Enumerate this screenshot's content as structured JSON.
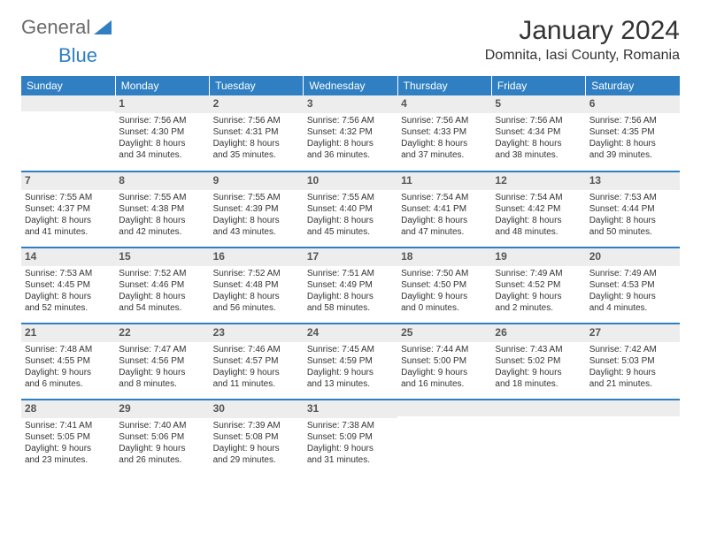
{
  "logo": {
    "text1": "General",
    "text2": "Blue"
  },
  "title": "January 2024",
  "location": "Domnita, Iasi County, Romania",
  "colors": {
    "header_bg": "#2f7fc2",
    "header_text": "#ffffff",
    "daynum_bg": "#ededed",
    "daynum_text": "#555555",
    "text": "#333333",
    "row_divider": "#2f7fc2",
    "background": "#ffffff"
  },
  "weekdays": [
    "Sunday",
    "Monday",
    "Tuesday",
    "Wednesday",
    "Thursday",
    "Friday",
    "Saturday"
  ],
  "weeks": [
    [
      {
        "day": "",
        "lines": []
      },
      {
        "day": "1",
        "lines": [
          "Sunrise: 7:56 AM",
          "Sunset: 4:30 PM",
          "Daylight: 8 hours",
          "and 34 minutes."
        ]
      },
      {
        "day": "2",
        "lines": [
          "Sunrise: 7:56 AM",
          "Sunset: 4:31 PM",
          "Daylight: 8 hours",
          "and 35 minutes."
        ]
      },
      {
        "day": "3",
        "lines": [
          "Sunrise: 7:56 AM",
          "Sunset: 4:32 PM",
          "Daylight: 8 hours",
          "and 36 minutes."
        ]
      },
      {
        "day": "4",
        "lines": [
          "Sunrise: 7:56 AM",
          "Sunset: 4:33 PM",
          "Daylight: 8 hours",
          "and 37 minutes."
        ]
      },
      {
        "day": "5",
        "lines": [
          "Sunrise: 7:56 AM",
          "Sunset: 4:34 PM",
          "Daylight: 8 hours",
          "and 38 minutes."
        ]
      },
      {
        "day": "6",
        "lines": [
          "Sunrise: 7:56 AM",
          "Sunset: 4:35 PM",
          "Daylight: 8 hours",
          "and 39 minutes."
        ]
      }
    ],
    [
      {
        "day": "7",
        "lines": [
          "Sunrise: 7:55 AM",
          "Sunset: 4:37 PM",
          "Daylight: 8 hours",
          "and 41 minutes."
        ]
      },
      {
        "day": "8",
        "lines": [
          "Sunrise: 7:55 AM",
          "Sunset: 4:38 PM",
          "Daylight: 8 hours",
          "and 42 minutes."
        ]
      },
      {
        "day": "9",
        "lines": [
          "Sunrise: 7:55 AM",
          "Sunset: 4:39 PM",
          "Daylight: 8 hours",
          "and 43 minutes."
        ]
      },
      {
        "day": "10",
        "lines": [
          "Sunrise: 7:55 AM",
          "Sunset: 4:40 PM",
          "Daylight: 8 hours",
          "and 45 minutes."
        ]
      },
      {
        "day": "11",
        "lines": [
          "Sunrise: 7:54 AM",
          "Sunset: 4:41 PM",
          "Daylight: 8 hours",
          "and 47 minutes."
        ]
      },
      {
        "day": "12",
        "lines": [
          "Sunrise: 7:54 AM",
          "Sunset: 4:42 PM",
          "Daylight: 8 hours",
          "and 48 minutes."
        ]
      },
      {
        "day": "13",
        "lines": [
          "Sunrise: 7:53 AM",
          "Sunset: 4:44 PM",
          "Daylight: 8 hours",
          "and 50 minutes."
        ]
      }
    ],
    [
      {
        "day": "14",
        "lines": [
          "Sunrise: 7:53 AM",
          "Sunset: 4:45 PM",
          "Daylight: 8 hours",
          "and 52 minutes."
        ]
      },
      {
        "day": "15",
        "lines": [
          "Sunrise: 7:52 AM",
          "Sunset: 4:46 PM",
          "Daylight: 8 hours",
          "and 54 minutes."
        ]
      },
      {
        "day": "16",
        "lines": [
          "Sunrise: 7:52 AM",
          "Sunset: 4:48 PM",
          "Daylight: 8 hours",
          "and 56 minutes."
        ]
      },
      {
        "day": "17",
        "lines": [
          "Sunrise: 7:51 AM",
          "Sunset: 4:49 PM",
          "Daylight: 8 hours",
          "and 58 minutes."
        ]
      },
      {
        "day": "18",
        "lines": [
          "Sunrise: 7:50 AM",
          "Sunset: 4:50 PM",
          "Daylight: 9 hours",
          "and 0 minutes."
        ]
      },
      {
        "day": "19",
        "lines": [
          "Sunrise: 7:49 AM",
          "Sunset: 4:52 PM",
          "Daylight: 9 hours",
          "and 2 minutes."
        ]
      },
      {
        "day": "20",
        "lines": [
          "Sunrise: 7:49 AM",
          "Sunset: 4:53 PM",
          "Daylight: 9 hours",
          "and 4 minutes."
        ]
      }
    ],
    [
      {
        "day": "21",
        "lines": [
          "Sunrise: 7:48 AM",
          "Sunset: 4:55 PM",
          "Daylight: 9 hours",
          "and 6 minutes."
        ]
      },
      {
        "day": "22",
        "lines": [
          "Sunrise: 7:47 AM",
          "Sunset: 4:56 PM",
          "Daylight: 9 hours",
          "and 8 minutes."
        ]
      },
      {
        "day": "23",
        "lines": [
          "Sunrise: 7:46 AM",
          "Sunset: 4:57 PM",
          "Daylight: 9 hours",
          "and 11 minutes."
        ]
      },
      {
        "day": "24",
        "lines": [
          "Sunrise: 7:45 AM",
          "Sunset: 4:59 PM",
          "Daylight: 9 hours",
          "and 13 minutes."
        ]
      },
      {
        "day": "25",
        "lines": [
          "Sunrise: 7:44 AM",
          "Sunset: 5:00 PM",
          "Daylight: 9 hours",
          "and 16 minutes."
        ]
      },
      {
        "day": "26",
        "lines": [
          "Sunrise: 7:43 AM",
          "Sunset: 5:02 PM",
          "Daylight: 9 hours",
          "and 18 minutes."
        ]
      },
      {
        "day": "27",
        "lines": [
          "Sunrise: 7:42 AM",
          "Sunset: 5:03 PM",
          "Daylight: 9 hours",
          "and 21 minutes."
        ]
      }
    ],
    [
      {
        "day": "28",
        "lines": [
          "Sunrise: 7:41 AM",
          "Sunset: 5:05 PM",
          "Daylight: 9 hours",
          "and 23 minutes."
        ]
      },
      {
        "day": "29",
        "lines": [
          "Sunrise: 7:40 AM",
          "Sunset: 5:06 PM",
          "Daylight: 9 hours",
          "and 26 minutes."
        ]
      },
      {
        "day": "30",
        "lines": [
          "Sunrise: 7:39 AM",
          "Sunset: 5:08 PM",
          "Daylight: 9 hours",
          "and 29 minutes."
        ]
      },
      {
        "day": "31",
        "lines": [
          "Sunrise: 7:38 AM",
          "Sunset: 5:09 PM",
          "Daylight: 9 hours",
          "and 31 minutes."
        ]
      },
      {
        "day": "",
        "lines": []
      },
      {
        "day": "",
        "lines": []
      },
      {
        "day": "",
        "lines": []
      }
    ]
  ]
}
